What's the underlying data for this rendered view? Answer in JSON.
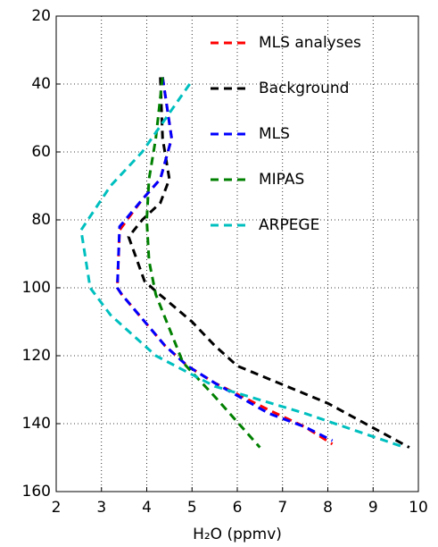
{
  "chart_data": {
    "type": "line",
    "x_label": "H₂O (ppmv)",
    "xlim": [
      2,
      10
    ],
    "xticks": [
      2,
      3,
      4,
      5,
      6,
      7,
      8,
      9,
      10
    ],
    "ylim": [
      160,
      20
    ],
    "yticks": [
      20,
      40,
      60,
      80,
      100,
      120,
      140,
      160
    ],
    "grid": true,
    "legend": "upper right",
    "line_style": "dashed",
    "series": [
      {
        "name": "MLS analyses",
        "color": "#ff0000",
        "x": [
          4.35,
          4.55,
          4.3,
          3.9,
          3.4,
          3.35,
          3.45,
          4.4,
          4.9,
          5.5,
          6.7,
          7.5,
          8.1
        ],
        "y": [
          38,
          56,
          68,
          74,
          83,
          100,
          102,
          117,
          123,
          128,
          136,
          141,
          146
        ]
      },
      {
        "name": "Background",
        "color": "#000000",
        "x": [
          4.3,
          4.35,
          4.5,
          4.3,
          3.9,
          3.6,
          3.95,
          4.2,
          5.0,
          5.5,
          6.0,
          8.0,
          9.8
        ],
        "y": [
          38,
          56,
          68,
          75,
          80,
          85,
          98,
          101,
          110,
          117,
          123,
          134,
          147
        ]
      },
      {
        "name": "MLS",
        "color": "#0000ff",
        "x": [
          4.35,
          4.55,
          4.3,
          3.9,
          3.4,
          3.35,
          3.45,
          4.4,
          4.9,
          5.5,
          6.7,
          7.5,
          8.1
        ],
        "y": [
          38,
          56,
          68,
          74,
          82,
          100,
          102,
          117,
          123,
          128,
          137,
          141,
          145
        ]
      },
      {
        "name": "MIPAS",
        "color": "#008000",
        "x": [
          4.35,
          4.2,
          4.05,
          4.0,
          4.05,
          4.2,
          4.5,
          4.8,
          5.5,
          6.5
        ],
        "y": [
          38,
          56,
          68,
          80,
          92,
          102,
          112,
          122,
          132,
          147
        ]
      },
      {
        "name": "ARPEGE",
        "color": "#00bfbf",
        "x": [
          4.95,
          3.9,
          3.2,
          2.55,
          2.75,
          3.2,
          4.2,
          5.5,
          7.5,
          9.7
        ],
        "y": [
          40,
          60,
          70,
          83,
          100,
          108,
          120,
          129,
          137,
          147
        ]
      }
    ]
  }
}
